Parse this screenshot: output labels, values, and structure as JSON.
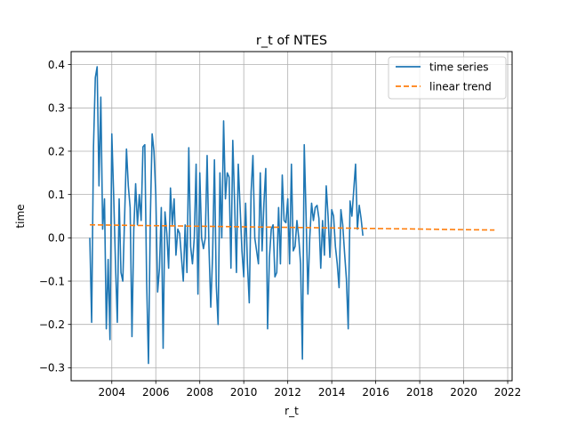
{
  "chart_data": {
    "type": "line",
    "title": "r_t of NTES",
    "xlabel": "r_t",
    "ylabel": "time",
    "xlim": [
      2002.15,
      2022.2
    ],
    "ylim": [
      -0.33,
      0.43
    ],
    "xticks": [
      2004,
      2006,
      2008,
      2010,
      2012,
      2014,
      2016,
      2018,
      2020,
      2022
    ],
    "xtick_labels": [
      "2004",
      "2006",
      "2008",
      "2010",
      "2012",
      "2014",
      "2016",
      "2018",
      "2020",
      "2022"
    ],
    "yticks": [
      -0.3,
      -0.2,
      -0.1,
      0.0,
      0.1,
      0.2,
      0.3,
      0.4
    ],
    "ytick_labels": [
      "−0.3",
      "−0.2",
      "−0.1",
      "0.0",
      "0.1",
      "0.2",
      "0.3",
      "0.4"
    ],
    "grid": true,
    "legend_position": "top-right",
    "colors": {
      "series": "#1f77b4",
      "trend": "#ff7f0e",
      "grid": "#b0b0b0"
    },
    "series": [
      {
        "name": "time series",
        "style": "solid",
        "color": "#1f77b4",
        "x_start": 2003.0,
        "x_step": 0.08333,
        "values": [
          0.0,
          -0.195,
          0.21,
          0.37,
          0.395,
          0.12,
          0.325,
          0.02,
          0.09,
          -0.21,
          -0.05,
          -0.235,
          0.24,
          0.1,
          -0.06,
          -0.195,
          0.09,
          -0.08,
          -0.1,
          0.05,
          0.205,
          0.12,
          0.07,
          -0.228,
          0.02,
          0.125,
          0.03,
          0.1,
          0.04,
          0.21,
          0.215,
          -0.1,
          -0.29,
          0.04,
          0.24,
          0.2,
          0.1,
          -0.125,
          -0.07,
          0.07,
          -0.255,
          0.06,
          0.01,
          -0.07,
          0.115,
          0.03,
          0.09,
          -0.04,
          0.02,
          0.01,
          -0.045,
          -0.1,
          0.03,
          -0.08,
          0.208,
          -0.02,
          -0.06,
          0.0,
          0.17,
          -0.13,
          0.15,
          0.0,
          -0.025,
          0.0,
          0.19,
          -0.02,
          -0.16,
          -0.04,
          0.18,
          -0.11,
          -0.2,
          0.15,
          0.0,
          0.27,
          0.09,
          0.15,
          0.14,
          -0.07,
          0.225,
          0.08,
          -0.08,
          0.17,
          0.07,
          -0.03,
          -0.09,
          0.08,
          -0.06,
          -0.15,
          0.105,
          0.19,
          0.0,
          -0.03,
          -0.06,
          0.15,
          -0.03,
          0.08,
          0.16,
          -0.21,
          -0.045,
          0.02,
          0.03,
          -0.09,
          -0.08,
          0.07,
          -0.06,
          0.145,
          0.04,
          0.035,
          0.09,
          -0.06,
          0.17,
          -0.03,
          -0.02,
          0.04,
          0.0,
          -0.06,
          -0.28,
          0.215,
          0.05,
          -0.13,
          0.0,
          0.08,
          0.04,
          0.07,
          0.075,
          0.045,
          -0.07,
          0.04,
          -0.04,
          0.12,
          0.05,
          -0.045,
          0.065,
          0.05,
          -0.02,
          -0.06,
          -0.115,
          0.065,
          0.03,
          -0.035,
          -0.095,
          -0.21,
          0.085,
          0.05,
          0.11,
          0.17,
          0.02,
          0.075,
          0.045,
          0.005
        ]
      },
      {
        "name": "linear trend",
        "style": "dashed",
        "color": "#ff7f0e",
        "x": [
          2003.0,
          2021.4
        ],
        "values": [
          0.03,
          0.018
        ]
      }
    ]
  }
}
